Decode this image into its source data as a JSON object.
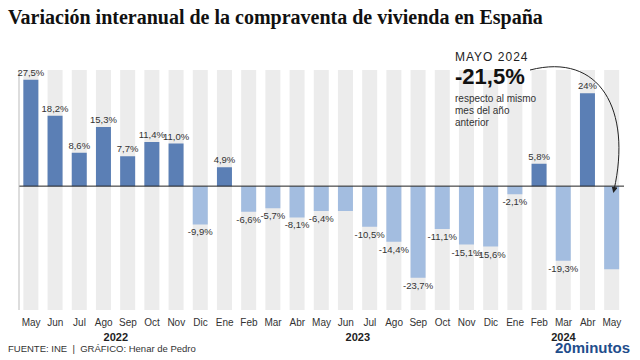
{
  "chart_data": {
    "type": "bar",
    "title": "Variación interanual de la compraventa de vivienda en España",
    "categories": [
      "May",
      "Jun",
      "Jul",
      "Ago",
      "Sep",
      "Oct",
      "Nov",
      "Dic",
      "Ene",
      "Feb",
      "Mar",
      "Abr",
      "May",
      "Jun",
      "Jul",
      "Ago",
      "Sep",
      "Oct",
      "Nov",
      "Dic",
      "Ene",
      "Feb",
      "Mar",
      "Abr",
      "May"
    ],
    "years": [
      "2022",
      "2022",
      "2022",
      "2022",
      "2022",
      "2022",
      "2022",
      "2022",
      "2023",
      "2023",
      "2023",
      "2023",
      "2023",
      "2023",
      "2023",
      "2023",
      "2023",
      "2023",
      "2023",
      "2023",
      "2024",
      "2024",
      "2024",
      "2024",
      "2024"
    ],
    "values": [
      27.5,
      18.2,
      8.6,
      15.3,
      7.7,
      11.4,
      11.0,
      -9.9,
      4.9,
      -6.6,
      -5.7,
      -8.1,
      -6.4,
      -6.4,
      -10.5,
      -14.4,
      -23.7,
      -11.1,
      -15.1,
      -15.6,
      -2.1,
      5.8,
      -19.3,
      24,
      -21.5
    ],
    "value_labels": [
      "27,5%",
      "18,2%",
      "8,6%",
      "15,3%",
      "7,7%",
      "11,4%",
      "11,0%",
      "-9,9%",
      "4,9%",
      "-6,6%",
      "-5,7%",
      "-8,1%",
      "-6,4%",
      null,
      "-10,5%",
      "-14,4%",
      "-23,7%",
      "-11,1%",
      "-15,1%",
      "-15,6%",
      "-2,1%",
      "5,8%",
      "-19,3%",
      "24%",
      null
    ],
    "colors": [
      "#5b7fb5",
      "#5b7fb5",
      "#5b7fb5",
      "#5b7fb5",
      "#5b7fb5",
      "#5b7fb5",
      "#5b7fb5",
      "#a3bde0",
      "#5b7fb5",
      "#a3bde0",
      "#a3bde0",
      "#a3bde0",
      "#a3bde0",
      "#a3bde0",
      "#a3bde0",
      "#a3bde0",
      "#a3bde0",
      "#a3bde0",
      "#a3bde0",
      "#a3bde0",
      "#a3bde0",
      "#5b7fb5",
      "#a3bde0",
      "#5b7fb5",
      "#a3bde0"
    ],
    "ylim": [
      -32,
      30
    ],
    "yticks": [
      0
    ],
    "tick_labels": "x",
    "data_labels": true,
    "annotation": {
      "title": "MAYO 2024",
      "value": "-21,5%",
      "text": "respecto al mismo mes del año anterior"
    },
    "source": "FUENTE: INE  |  GRÁFICO: Henar de Pedro",
    "credit": "20minutos"
  }
}
